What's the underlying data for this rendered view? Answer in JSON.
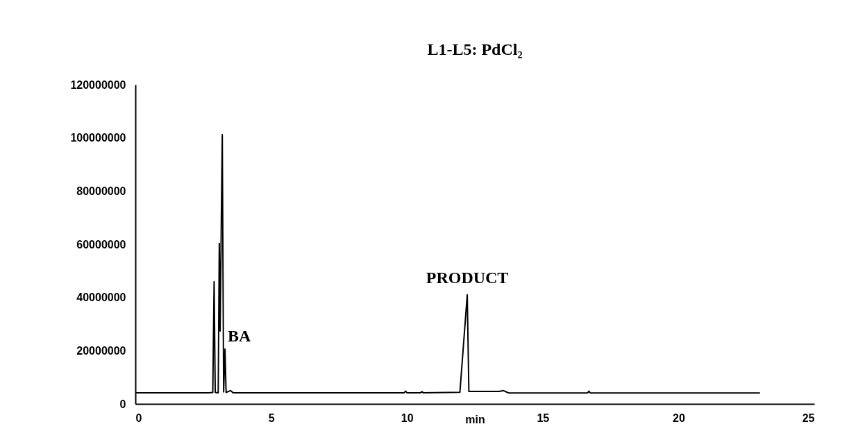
{
  "chart_data": {
    "type": "line",
    "title": "L1-L5:  PdCl₂",
    "xlabel": "min",
    "x": [
      0,
      2.7,
      2.85,
      2.9,
      2.94,
      3.05,
      3.09,
      3.12,
      3.2,
      3.25,
      3.3,
      3.34,
      3.5,
      3.6,
      5,
      9.9,
      9.95,
      10,
      10.5,
      10.55,
      10.6,
      11.95,
      12.22,
      12.28,
      13.4,
      13.55,
      13.75,
      16.65,
      16.7,
      16.75,
      23
    ],
    "series": [
      {
        "color": "#000000",
        "values": [
          4200000,
          4200000,
          4300000,
          46000000,
          4300000,
          4200000,
          60300000,
          27400000,
          101200000,
          4500000,
          20600000,
          4300000,
          5000000,
          4200000,
          4200000,
          4200000,
          4800000,
          4200000,
          4200000,
          4600000,
          4200000,
          4400000,
          41000000,
          4700000,
          4700000,
          5000000,
          4100000,
          4100000,
          4800000,
          4100000,
          4100000
        ]
      }
    ],
    "xlim": [
      0,
      25
    ],
    "xticks": [
      0,
      5,
      10,
      15,
      20,
      25
    ],
    "ylim": [
      0,
      120000000
    ],
    "yticks": [
      0,
      20000000,
      40000000,
      60000000,
      80000000,
      100000000,
      120000000
    ],
    "annotations": [
      {
        "text": "BA",
        "x": 3.3,
        "y": 20600000
      },
      {
        "text": "PRODUCT",
        "x": 12.22,
        "y": 41000000
      }
    ],
    "grid": false,
    "marker": "none",
    "line_style": "solid"
  }
}
